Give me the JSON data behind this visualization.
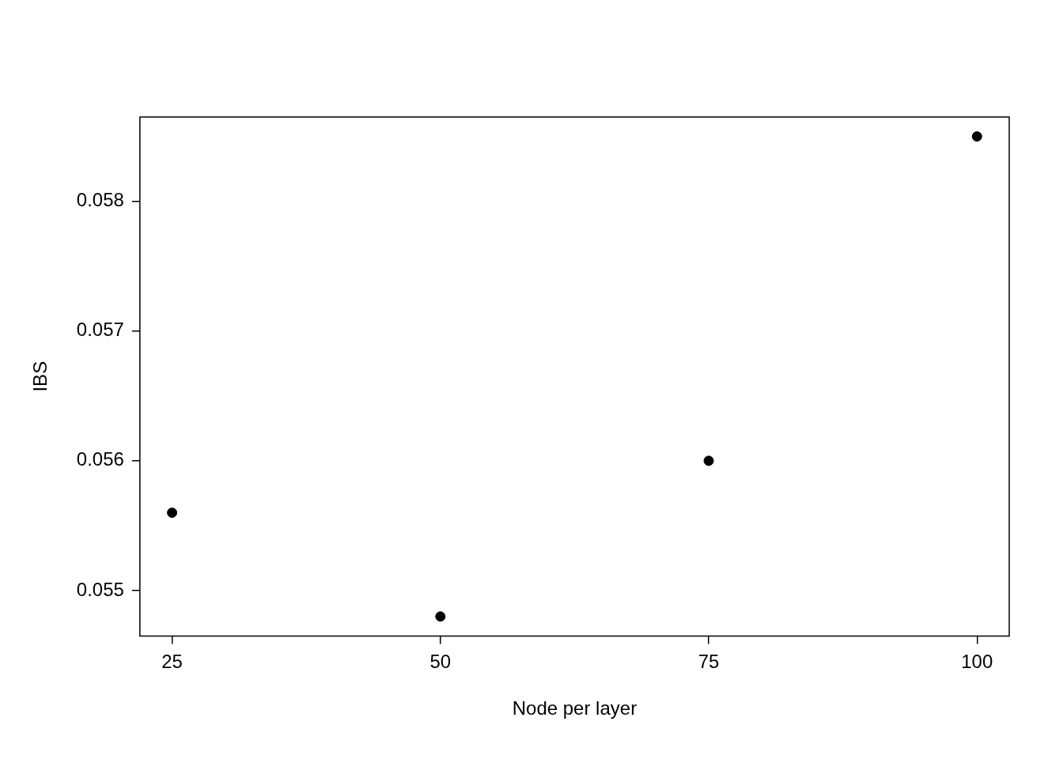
{
  "chart_data": {
    "type": "scatter",
    "xlabel": "Node per layer",
    "ylabel": "IBS",
    "x": [
      25,
      50,
      75,
      100
    ],
    "values": [
      0.0556,
      0.0548,
      0.056,
      0.0585
    ],
    "color": "#000000",
    "marker": "circle",
    "xlim": [
      22,
      103
    ],
    "ylim": [
      0.05465,
      0.05865
    ],
    "xticks": [
      25,
      50,
      75,
      100
    ],
    "yticks": [
      0.055,
      0.056,
      0.057,
      0.058
    ]
  }
}
